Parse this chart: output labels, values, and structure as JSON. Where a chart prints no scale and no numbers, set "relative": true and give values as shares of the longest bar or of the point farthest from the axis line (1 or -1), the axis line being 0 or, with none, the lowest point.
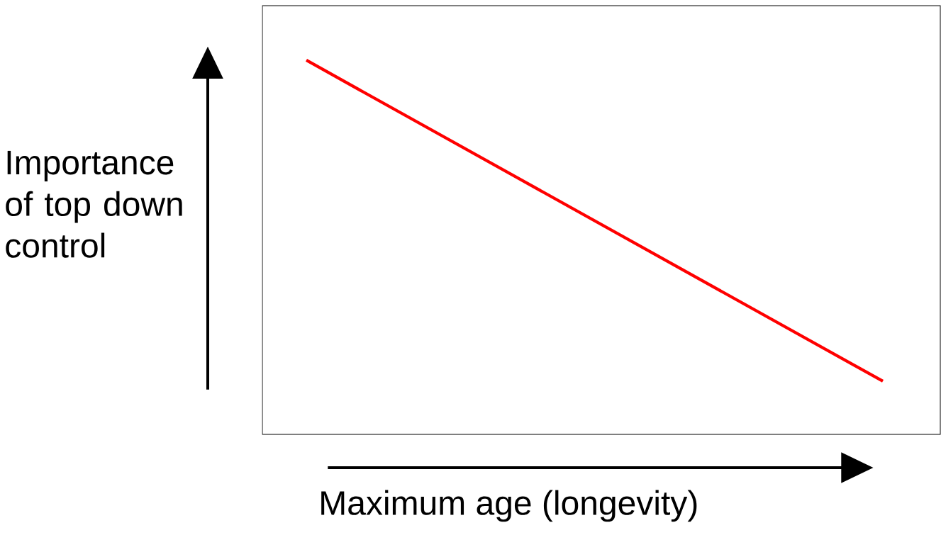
{
  "chart_data": {
    "type": "line",
    "relative": true,
    "xlabel": "Maximum age (longevity)",
    "ylabel": "Importance of top down control",
    "categories": [
      null,
      null
    ],
    "series": [
      {
        "color": "#ff0000",
        "values": [
          1,
          0
        ]
      }
    ]
  }
}
